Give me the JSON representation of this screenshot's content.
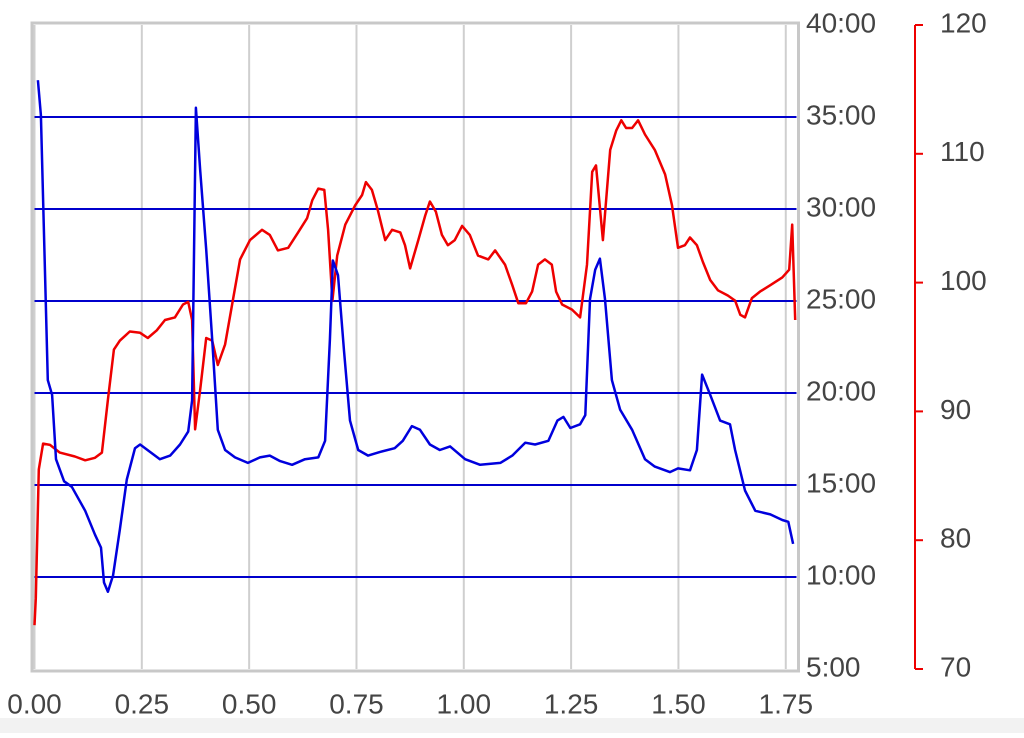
{
  "chart_data": {
    "type": "line",
    "xlim": [
      0,
      1.775
    ],
    "xticks": [
      {
        "value": 0,
        "label": "0.00"
      },
      0.25,
      {
        "value": 0.5,
        "label": "0.50"
      },
      0.75,
      {
        "value": 1,
        "label": "1.00"
      },
      1.25,
      {
        "value": 1.5,
        "label": "1.50"
      },
      1.75
    ],
    "ylim": [
      5,
      40
    ],
    "yticks": [
      {
        "value": 5,
        "label": "5:00"
      },
      {
        "value": 10,
        "label": "10:00"
      },
      {
        "value": 15,
        "label": "15:00"
      },
      {
        "value": 20,
        "label": "20:00"
      },
      {
        "value": 25,
        "label": "25:00"
      },
      {
        "value": 30,
        "label": "30:00"
      },
      {
        "value": 35,
        "label": "35:00"
      },
      {
        "value": 40,
        "label": "40:00"
      }
    ],
    "y2lim": [
      70,
      120
    ],
    "y2ticks": [
      70,
      80,
      90,
      100,
      110,
      120
    ],
    "grid": true,
    "series": [
      {
        "color": "#0000dd",
        "x": [
          0.008,
          0.015,
          0.031,
          0.041,
          0.05,
          0.069,
          0.087,
          0.118,
          0.141,
          0.155,
          0.162,
          0.171,
          0.183,
          0.199,
          0.215,
          0.234,
          0.246,
          0.269,
          0.292,
          0.316,
          0.339,
          0.358,
          0.367,
          0.376,
          0.386,
          0.4,
          0.414,
          0.427,
          0.444,
          0.467,
          0.497,
          0.525,
          0.548,
          0.572,
          0.6,
          0.63,
          0.661,
          0.677,
          0.688,
          0.695,
          0.707,
          0.721,
          0.735,
          0.754,
          0.777,
          0.805,
          0.839,
          0.858,
          0.879,
          0.898,
          0.921,
          0.944,
          0.968,
          1.003,
          1.038,
          1.085,
          1.113,
          1.143,
          1.166,
          1.197,
          1.218,
          1.232,
          1.248,
          1.271,
          1.283,
          1.294,
          1.306,
          1.317,
          1.329,
          1.345,
          1.364,
          1.392,
          1.422,
          1.445,
          1.48,
          1.499,
          1.527,
          1.543,
          1.555,
          1.574,
          1.597,
          1.62,
          1.632,
          1.655,
          1.679,
          1.714,
          1.742,
          1.756,
          1.767
        ],
        "values": [
          37.0,
          35.1,
          20.7,
          19.9,
          16.4,
          15.2,
          14.9,
          13.6,
          12.3,
          11.6,
          9.7,
          9.2,
          10.1,
          12.6,
          15.3,
          17.0,
          17.2,
          16.8,
          16.4,
          16.6,
          17.2,
          17.9,
          19.6,
          35.5,
          32.1,
          27.8,
          22.9,
          18.0,
          16.9,
          16.5,
          16.2,
          16.5,
          16.6,
          16.3,
          16.1,
          16.4,
          16.5,
          17.4,
          22.9,
          27.2,
          26.4,
          22.3,
          18.5,
          16.9,
          16.6,
          16.8,
          17.0,
          17.4,
          18.2,
          18.0,
          17.2,
          16.9,
          17.1,
          16.4,
          16.1,
          16.2,
          16.6,
          17.3,
          17.2,
          17.4,
          18.5,
          18.7,
          18.1,
          18.3,
          18.8,
          25.1,
          26.7,
          27.3,
          25.1,
          20.7,
          19.1,
          18.0,
          16.4,
          16.0,
          15.7,
          15.9,
          15.8,
          16.9,
          21.0,
          19.9,
          18.5,
          18.3,
          16.9,
          14.7,
          13.6,
          13.4,
          13.1,
          13.0,
          11.8
        ]
      },
      {
        "color": "#ee0000",
        "axis": "y2",
        "x": [
          0,
          0.003,
          0.01,
          0.02,
          0.036,
          0.059,
          0.094,
          0.118,
          0.141,
          0.157,
          0.171,
          0.185,
          0.199,
          0.222,
          0.246,
          0.264,
          0.285,
          0.304,
          0.327,
          0.346,
          0.358,
          0.367,
          0.374,
          0.386,
          0.4,
          0.414,
          0.427,
          0.444,
          0.462,
          0.479,
          0.502,
          0.53,
          0.548,
          0.567,
          0.591,
          0.614,
          0.635,
          0.647,
          0.661,
          0.675,
          0.684,
          0.694,
          0.705,
          0.724,
          0.747,
          0.763,
          0.772,
          0.786,
          0.8,
          0.817,
          0.833,
          0.852,
          0.863,
          0.875,
          0.894,
          0.91,
          0.921,
          0.935,
          0.949,
          0.963,
          0.979,
          0.996,
          1.014,
          1.033,
          1.057,
          1.073,
          1.096,
          1.113,
          1.127,
          1.145,
          1.159,
          1.173,
          1.189,
          1.205,
          1.215,
          1.229,
          1.252,
          1.271,
          1.287,
          1.299,
          1.308,
          1.324,
          1.341,
          1.355,
          1.367,
          1.378,
          1.392,
          1.406,
          1.422,
          1.445,
          1.469,
          1.485,
          1.499,
          1.515,
          1.527,
          1.543,
          1.557,
          1.574,
          1.592,
          1.615,
          1.632,
          1.644,
          1.655,
          1.671,
          1.69,
          1.714,
          1.742,
          1.758,
          1.765,
          1.772
        ],
        "values": [
          73.4,
          75.5,
          85.5,
          87.5,
          87.4,
          86.8,
          86.5,
          86.2,
          86.4,
          86.8,
          90.9,
          94.8,
          95.5,
          96.2,
          96.1,
          95.7,
          96.3,
          97.1,
          97.3,
          98.3,
          98.5,
          97.1,
          88.6,
          91.7,
          95.7,
          95.5,
          93.6,
          95.2,
          98.6,
          101.8,
          103.3,
          104.1,
          103.7,
          102.5,
          102.7,
          103.9,
          105.0,
          106.4,
          107.3,
          107.2,
          104.1,
          98.6,
          102.1,
          104.5,
          106.0,
          106.8,
          107.8,
          107.2,
          105.6,
          103.3,
          104.1,
          103.9,
          102.9,
          101.1,
          103.3,
          105.2,
          106.3,
          105.5,
          103.7,
          102.9,
          103.3,
          104.4,
          103.7,
          102.1,
          101.8,
          102.5,
          101.4,
          99.8,
          98.4,
          98.4,
          99.3,
          101.4,
          101.8,
          101.4,
          99.3,
          98.3,
          97.9,
          97.3,
          101.4,
          108.6,
          109.1,
          103.3,
          110.3,
          111.8,
          112.6,
          112.0,
          112.0,
          112.6,
          111.5,
          110.3,
          108.4,
          106.0,
          102.7,
          102.9,
          103.5,
          102.9,
          101.6,
          100.2,
          99.4,
          99.0,
          98.6,
          97.5,
          97.3,
          98.8,
          99.3,
          99.8,
          100.4,
          101.0,
          104.5,
          97.1
        ]
      }
    ]
  }
}
